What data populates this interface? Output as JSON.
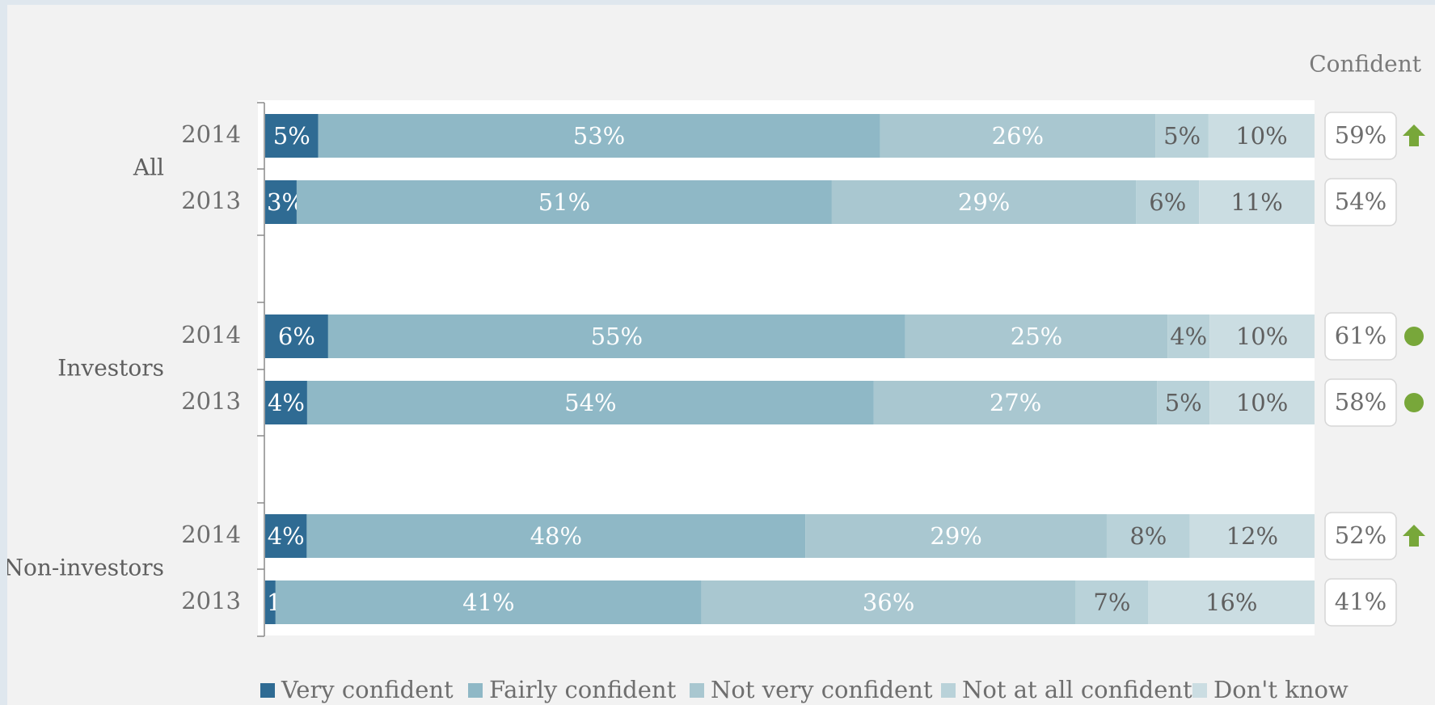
{
  "chart_data": {
    "type": "bar",
    "stacked": true,
    "orientation": "horizontal",
    "summary_header": "Confident",
    "groups": [
      {
        "name": "All",
        "rows": [
          {
            "year": "2014",
            "values": [
              5,
              53,
              26,
              5,
              10
            ],
            "confident": "59%",
            "marker": "up-arrow"
          },
          {
            "year": "2013",
            "values": [
              3,
              51,
              29,
              6,
              11
            ],
            "confident": "54%",
            "marker": ""
          }
        ]
      },
      {
        "name": "Investors",
        "rows": [
          {
            "year": "2014",
            "values": [
              6,
              55,
              25,
              4,
              10
            ],
            "confident": "61%",
            "marker": "dot"
          },
          {
            "year": "2013",
            "values": [
              4,
              54,
              27,
              5,
              10
            ],
            "confident": "58%",
            "marker": "dot"
          }
        ]
      },
      {
        "name": "Non-investors",
        "rows": [
          {
            "year": "2014",
            "values": [
              4,
              48,
              29,
              8,
              12
            ],
            "confident": "52%",
            "marker": "up-arrow"
          },
          {
            "year": "2013",
            "values": [
              1,
              41,
              36,
              7,
              16
            ],
            "confident": "41%",
            "marker": ""
          }
        ]
      }
    ],
    "series": [
      {
        "name": "Very confident",
        "color": "#2f6b93"
      },
      {
        "name": "Fairly confident",
        "color": "#8fb8c6"
      },
      {
        "name": "Not very confident",
        "color": "#a9c7d0"
      },
      {
        "name": "Not at all confident",
        "color": "#b9d2d9"
      },
      {
        "name": "Don't know",
        "color": "#cbdde2"
      }
    ],
    "label_colors": [
      "#ffffff",
      "#ffffff",
      "#ffffff",
      "#5f5f5f",
      "#5f5f5f"
    ],
    "marker_color": "#78a73a",
    "xlim": [
      0,
      100
    ],
    "legend_position": "bottom",
    "grid": false
  }
}
